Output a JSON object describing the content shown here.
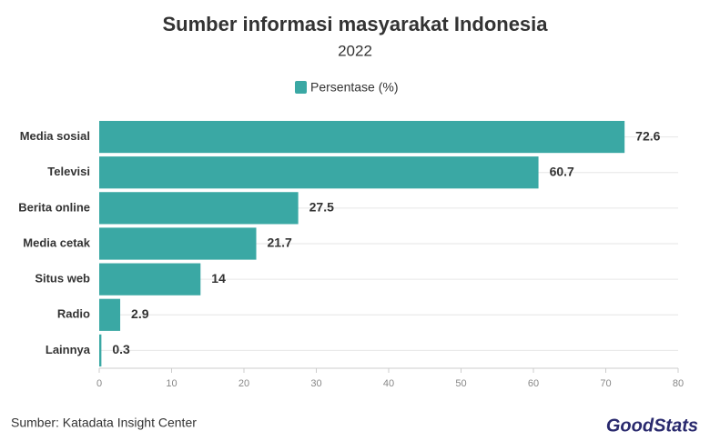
{
  "chart_data": {
    "type": "bar",
    "orientation": "horizontal",
    "title": "Sumber informasi masyarakat Indonesia",
    "subtitle": "2022",
    "categories": [
      "Media sosial",
      "Televisi",
      "Berita online",
      "Media cetak",
      "Situs web",
      "Radio",
      "Lainnya"
    ],
    "series": [
      {
        "name": "Persentase (%)",
        "color": "#3aa8a4",
        "values": [
          72.6,
          60.7,
          27.5,
          21.7,
          14,
          2.9,
          0.3
        ]
      }
    ],
    "xlim": [
      0,
      80
    ],
    "xticks": [
      0,
      10,
      20,
      30,
      40,
      50,
      60,
      70,
      80
    ],
    "grid": true,
    "legend": "top"
  },
  "footer": {
    "source": "Sumber: Katadata Insight Center",
    "logo": "GoodStats"
  }
}
